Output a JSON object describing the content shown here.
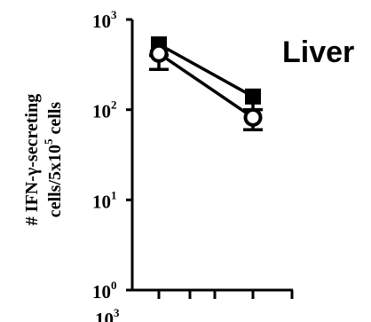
{
  "chart_data": {
    "type": "line",
    "title": "Liver",
    "ylabel_line1": "# IFN-γ-secreting",
    "ylabel_line2_prefix": "cells/5x10",
    "ylabel_line2_sup": "5",
    "ylabel_line2_suffix": " cells",
    "yscale": "log",
    "ylim": [
      1,
      1000
    ],
    "yticks": [
      {
        "value": 1000,
        "base": "10",
        "exp": "3"
      },
      {
        "value": 100,
        "base": "10",
        "exp": "2"
      },
      {
        "value": 10,
        "base": "10",
        "exp": "1"
      },
      {
        "value": 1,
        "base": "10",
        "exp": "0"
      }
    ],
    "next_panel_tick": {
      "base": "10",
      "exp": "3"
    },
    "x": [
      1,
      2
    ],
    "series": [
      {
        "marker": "square-filled",
        "values": [
          530,
          140
        ],
        "err_low": [
          400,
          100
        ],
        "err_high": [
          600,
          160
        ]
      },
      {
        "marker": "circle-open",
        "values": [
          420,
          82
        ],
        "err_low": [
          280,
          60
        ],
        "err_high": [
          520,
          100
        ]
      }
    ]
  }
}
